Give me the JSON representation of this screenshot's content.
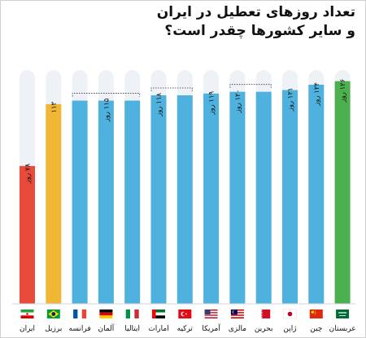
{
  "title": {
    "line1": "تعداد روزهای تعطیل در ایران",
    "line2": "و سایر کشورها چقدر است؟"
  },
  "colors": {
    "track": "#eef2f7",
    "iran": "#e84a3c",
    "brazil": "#f0b636",
    "others": "#4fb1dd",
    "saudi": "#4cb04f"
  },
  "chart_data": {
    "type": "bar",
    "unit": "روز",
    "ylim": [
      0,
      130
    ],
    "grid": false,
    "categories": [
      "ایران",
      "برزیل",
      "فرانسه",
      "آلمان",
      "ایتالیا",
      "امارات",
      "ترکیه",
      "آمریکا",
      "مالزی",
      "بحرین",
      "ژاپن",
      "چین",
      "عربستان"
    ],
    "values": [
      78,
      113,
      115,
      115,
      115,
      118,
      118,
      119,
      120,
      120,
      121,
      124,
      126
    ],
    "value_labels": [
      "۷۸ روز",
      "۱۱۳",
      "",
      "۱۱۵ روز",
      "",
      "۱۱۸ روز",
      "",
      "۱۱۹ روز",
      "۱۲۰ روز",
      "",
      "۱۲۱ روز",
      "۱۲۴ روز",
      "۱۲۶ روز"
    ],
    "groups": [
      {
        "from": 2,
        "to": 4
      },
      {
        "from": 5,
        "to": 6
      },
      {
        "from": 8,
        "to": 9
      }
    ],
    "flags": [
      "iran-flag",
      "brazil-flag",
      "france-flag",
      "germany-flag",
      "italy-flag",
      "uae-flag",
      "turkey-flag",
      "usa-flag",
      "malaysia-flag",
      "bahrain-flag",
      "japan-flag",
      "china-flag",
      "saudi-flag"
    ]
  }
}
